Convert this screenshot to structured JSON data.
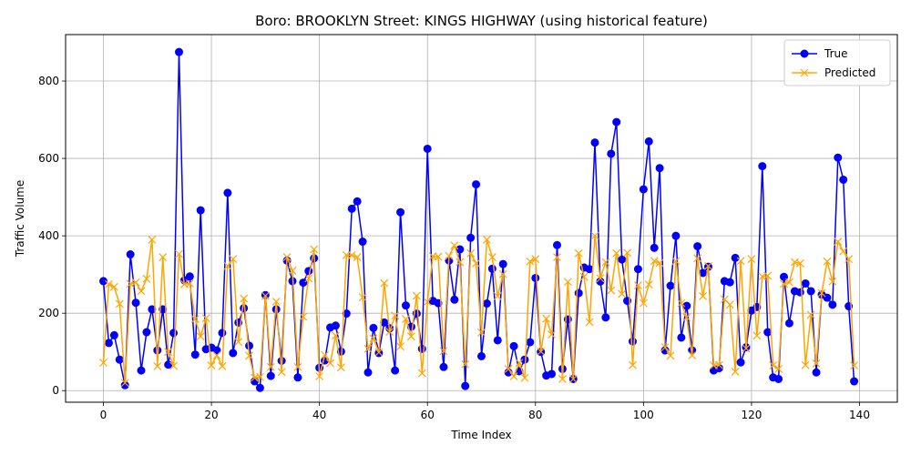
{
  "chart_data": {
    "type": "line",
    "title": "Boro: BROOKLYN Street: KINGS HIGHWAY (using historical feature)",
    "xlabel": "Time Index",
    "ylabel": "Traffic Volume",
    "xlim": [
      -7,
      147
    ],
    "ylim": [
      -30,
      920
    ],
    "xticks": [
      0,
      20,
      40,
      60,
      80,
      100,
      120,
      140
    ],
    "yticks": [
      0,
      200,
      400,
      600,
      800
    ],
    "grid": true,
    "legend_position": "top-right",
    "series": [
      {
        "name": "True",
        "color": "#0000ff",
        "marker": "circle",
        "values": [
          283,
          123,
          143,
          80,
          14,
          352,
          227,
          52,
          151,
          210,
          104,
          210,
          67,
          149,
          875,
          285,
          295,
          93,
          466,
          107,
          111,
          104,
          149,
          511,
          97,
          176,
          213,
          116,
          24,
          7,
          247,
          38,
          210,
          77,
          336,
          283,
          34,
          279,
          309,
          342,
          59,
          78,
          163,
          168,
          101,
          199,
          470,
          489,
          385,
          47,
          162,
          97,
          176,
          161,
          52,
          461,
          220,
          165,
          199,
          108,
          625,
          232,
          226,
          61,
          336,
          235,
          365,
          12,
          395,
          533,
          89,
          225,
          315,
          130,
          327,
          47,
          115,
          50,
          80,
          125,
          291,
          100,
          39,
          43,
          376,
          56,
          184,
          30,
          252,
          318,
          314,
          641,
          282,
          189,
          612,
          694,
          339,
          232,
          127,
          314,
          520,
          644,
          369,
          575,
          104,
          271,
          400,
          137,
          219,
          104,
          373,
          304,
          320,
          52,
          58,
          283,
          280,
          343,
          73,
          112,
          207,
          216,
          580,
          151,
          34,
          30,
          294,
          174,
          257,
          254,
          277,
          257,
          47,
          248,
          240,
          222,
          602,
          545,
          218,
          24
        ]
      },
      {
        "name": "Predicted",
        "color": "#ffa500",
        "marker": "x",
        "values": [
          72,
          275,
          268,
          224,
          20,
          276,
          280,
          257,
          289,
          390,
          63,
          345,
          100,
          64,
          353,
          275,
          277,
          185,
          140,
          187,
          65,
          91,
          63,
          322,
          340,
          126,
          238,
          90,
          33,
          35,
          245,
          61,
          230,
          48,
          345,
          310,
          61,
          191,
          290,
          365,
          37,
          92,
          71,
          142,
          60,
          350,
          350,
          345,
          241,
          108,
          135,
          99,
          278,
          152,
          194,
          114,
          185,
          140,
          245,
          45,
          229,
          347,
          346,
          102,
          348,
          375,
          332,
          68,
          355,
          329,
          150,
          390,
          345,
          244,
          301,
          56,
          37,
          72,
          33,
          334,
          340,
          101,
          186,
          145,
          345,
          30,
          281,
          30,
          355,
          294,
          177,
          400,
          290,
          332,
          259,
          355,
          250,
          356,
          66,
          272,
          226,
          274,
          335,
          330,
          112,
          90,
          335,
          226,
          189,
          91,
          342,
          244,
          322,
          65,
          66,
          236,
          222,
          49,
          335,
          109,
          340,
          142,
          295,
          297,
          65,
          56,
          276,
          280,
          332,
          329,
          66,
          196,
          70,
          252,
          334,
          282,
          385,
          360,
          340,
          65
        ]
      }
    ]
  }
}
